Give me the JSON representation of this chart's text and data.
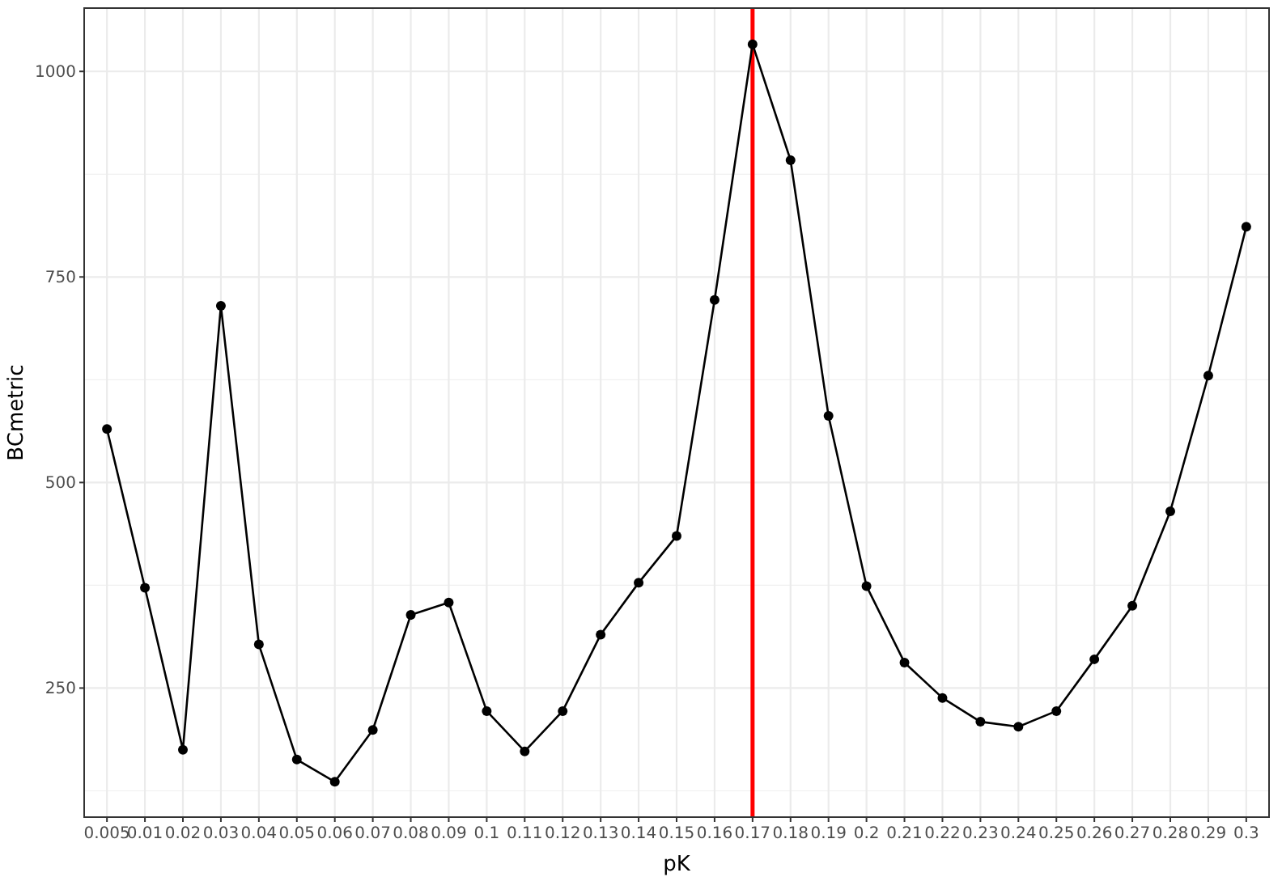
{
  "chart_data": {
    "type": "line",
    "xlabel": "pK",
    "ylabel": "BCmetric",
    "categories": [
      "0.005",
      "0.01",
      "0.02",
      "0.03",
      "0.04",
      "0.05",
      "0.06",
      "0.07",
      "0.08",
      "0.09",
      "0.1",
      "0.11",
      "0.12",
      "0.13",
      "0.14",
      "0.15",
      "0.16",
      "0.17",
      "0.18",
      "0.19",
      "0.2",
      "0.21",
      "0.22",
      "0.23",
      "0.24",
      "0.25",
      "0.26",
      "0.27",
      "0.28",
      "0.29",
      "0.3"
    ],
    "series": [
      {
        "color": "#000000",
        "values": [
          565,
          372,
          175,
          715,
          303,
          163,
          136,
          199,
          339,
          354,
          222,
          173,
          222,
          315,
          378,
          435,
          722,
          1033,
          892,
          581,
          374,
          281,
          238,
          209,
          203,
          222,
          285,
          350,
          465,
          630,
          811
        ]
      }
    ],
    "ylim": [
      93,
      1077
    ],
    "yticks": [
      250,
      500,
      750,
      1000
    ],
    "grid": true,
    "marker": "circle",
    "line_style": "solid",
    "ref_lines": [
      {
        "axis": "x",
        "value": "0.17",
        "color": "#ff0000"
      }
    ]
  }
}
